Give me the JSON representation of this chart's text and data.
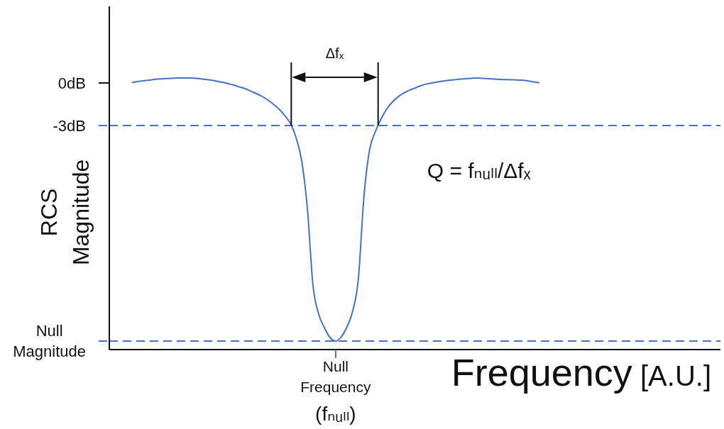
{
  "chart_data": {
    "type": "line",
    "xlabel": "Frequency [A.U.]",
    "ylabel": "RCS Magnitude",
    "categories": [
      null,
      null,
      null,
      null,
      null,
      null,
      null,
      null,
      null,
      null,
      null,
      null,
      null,
      null,
      null,
      null,
      null,
      null,
      null,
      null,
      null,
      null,
      null,
      null,
      null,
      null,
      null,
      null,
      null,
      null,
      null,
      null,
      null,
      null,
      null,
      null,
      null,
      null,
      null,
      null,
      "Null Frequency (fₙᵤₗₗ)",
      null,
      null,
      null,
      null,
      null,
      null,
      null,
      null,
      null,
      null,
      null,
      null,
      null,
      null,
      null,
      null,
      null,
      null,
      null,
      null,
      null,
      null,
      null,
      null,
      null,
      null,
      null,
      null,
      null,
      null,
      null,
      null,
      null,
      null,
      null,
      null,
      null,
      null,
      null,
      null,
      null,
      null,
      null,
      null,
      null,
      null,
      null,
      null,
      null,
      null,
      null,
      null,
      null,
      null,
      null,
      null,
      null,
      null,
      null,
      null,
      null,
      null,
      null,
      null,
      null,
      null,
      null,
      null
    ],
    "values": [
      null,
      null,
      null,
      null,
      0.03,
      0.1,
      0.15,
      0.2,
      0.25,
      0.29,
      0.31,
      0.33,
      0.35,
      0.35,
      0.35,
      0.34,
      0.3,
      0.25,
      0.2,
      0.13,
      0.05,
      -0.05,
      -0.15,
      -0.28,
      -0.4,
      -0.58,
      -0.75,
      -0.95,
      -1.2,
      -1.5,
      -1.85,
      -2.3,
      -2.85,
      -3.85,
      -5.5,
      -8.85,
      -14.3,
      -16.3,
      -17.25,
      -17.95,
      -18.2,
      -17.9,
      -17.2,
      -16.1,
      -13.85,
      -8,
      -4.7,
      -3.45,
      -2.55,
      -1.85,
      -1.35,
      -0.98,
      -0.72,
      -0.52,
      -0.36,
      -0.2,
      -0.08,
      0,
      0.08,
      0.14,
      0.19,
      0.23,
      0.27,
      0.3,
      0.33,
      0.35,
      0.32,
      0.3,
      0.27,
      0.25,
      0.24,
      0.23,
      0.21,
      0.2,
      0.14,
      0.08,
      0.01,
      null,
      null,
      null,
      null,
      null,
      null,
      null,
      null,
      null,
      null,
      null,
      null,
      null,
      null,
      null,
      null,
      null,
      null,
      null,
      null,
      null,
      null,
      null,
      null,
      null,
      null,
      null,
      null,
      null,
      null,
      null,
      null
    ],
    "color": "#4472c4",
    "marker": "none",
    "ylim": [
      -18.8,
      5.4
    ],
    "yticks": [
      {
        "value": 0,
        "label": "0dB"
      },
      {
        "value": -3,
        "label": "-3dB"
      },
      {
        "value": -18.2,
        "label": "Null Magnitude"
      }
    ],
    "ref_lines": [
      {
        "axis": "y",
        "value": -3,
        "color": "#4472c4",
        "line_style": "dashed"
      },
      {
        "axis": "y",
        "value": -18.2,
        "color": "#4472c4",
        "line_style": "dashed"
      }
    ],
    "annotations": [
      "Δfₓ",
      "Q = fₙᵤₗₗ/Δfₓ"
    ]
  }
}
